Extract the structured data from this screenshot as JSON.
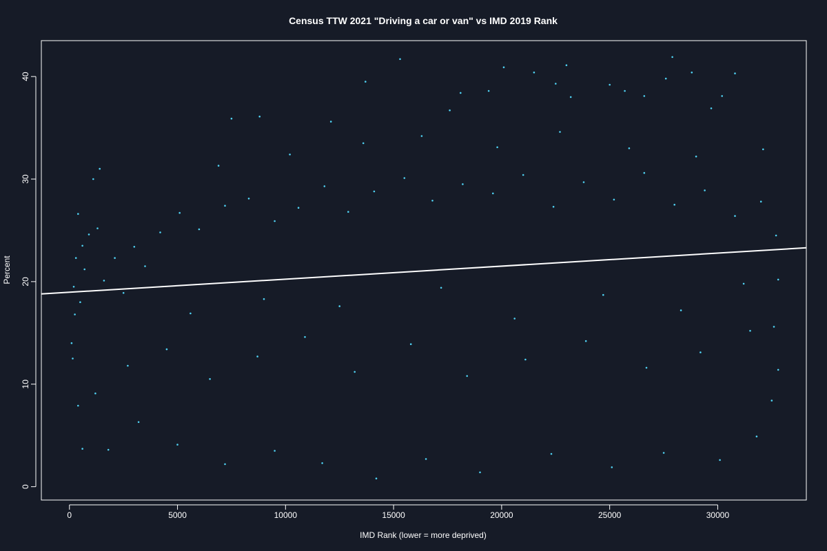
{
  "chart_data": {
    "type": "scatter",
    "title": "Census TTW 2021 \"Driving a car or van\" vs IMD 2019 Rank",
    "xlabel": "IMD Rank (lower = more deprived)",
    "ylabel": "Percent",
    "xlim": [
      -1300,
      34100
    ],
    "ylim": [
      -1.3,
      43.5
    ],
    "x_ticks": [
      0,
      5000,
      10000,
      15000,
      20000,
      25000,
      30000
    ],
    "x_tick_labels": [
      "0",
      "5000",
      "10000",
      "15000",
      "20000",
      "25000",
      "30000"
    ],
    "y_ticks": [
      0,
      10,
      20,
      30,
      40
    ],
    "y_tick_labels": [
      "0",
      "10",
      "20",
      "30",
      "40"
    ],
    "grid": false,
    "legend": "none",
    "point_color": "#4fd1f2",
    "trend_color": "#ffffff",
    "background": "#161b27",
    "trend_line": {
      "x": [
        -1300,
        34100
      ],
      "y": [
        18.8,
        23.3
      ]
    },
    "series": [
      {
        "points": [
          [
            15300,
            41.7
          ],
          [
            27900,
            41.9
          ],
          [
            20100,
            40.9
          ],
          [
            23000,
            41.1
          ],
          [
            30800,
            40.3
          ],
          [
            28800,
            40.4
          ],
          [
            21500,
            40.4
          ],
          [
            13700,
            39.5
          ],
          [
            22500,
            39.3
          ],
          [
            27600,
            39.8
          ],
          [
            25000,
            39.2
          ],
          [
            19400,
            38.6
          ],
          [
            25700,
            38.6
          ],
          [
            18100,
            38.4
          ],
          [
            23200,
            38.0
          ],
          [
            30200,
            38.1
          ],
          [
            8800,
            36.1
          ],
          [
            7500,
            35.9
          ],
          [
            12100,
            35.6
          ],
          [
            17600,
            36.7
          ],
          [
            29700,
            36.9
          ],
          [
            26600,
            38.1
          ],
          [
            1400,
            31.0
          ],
          [
            1100,
            30.0
          ],
          [
            400,
            26.6
          ],
          [
            600,
            23.5
          ],
          [
            300,
            22.3
          ],
          [
            200,
            19.5
          ],
          [
            100,
            14.0
          ],
          [
            150,
            12.5
          ],
          [
            250,
            16.8
          ],
          [
            500,
            18.0
          ],
          [
            700,
            21.2
          ],
          [
            900,
            24.6
          ],
          [
            1300,
            25.2
          ],
          [
            1600,
            20.1
          ],
          [
            2100,
            22.3
          ],
          [
            2500,
            18.9
          ],
          [
            3000,
            23.4
          ],
          [
            3500,
            21.5
          ],
          [
            4200,
            24.8
          ],
          [
            5100,
            26.7
          ],
          [
            6000,
            25.1
          ],
          [
            7200,
            27.4
          ],
          [
            8300,
            28.1
          ],
          [
            9500,
            25.9
          ],
          [
            10600,
            27.2
          ],
          [
            11800,
            29.3
          ],
          [
            12900,
            26.8
          ],
          [
            14100,
            28.8
          ],
          [
            15500,
            30.1
          ],
          [
            16800,
            27.9
          ],
          [
            18200,
            29.5
          ],
          [
            19600,
            28.6
          ],
          [
            21000,
            30.4
          ],
          [
            22400,
            27.3
          ],
          [
            23800,
            29.7
          ],
          [
            25200,
            28.0
          ],
          [
            26600,
            30.6
          ],
          [
            28000,
            27.5
          ],
          [
            29400,
            28.9
          ],
          [
            30800,
            26.4
          ],
          [
            32000,
            27.8
          ],
          [
            32700,
            24.5
          ],
          [
            32800,
            20.2
          ],
          [
            32600,
            15.6
          ],
          [
            32800,
            11.4
          ],
          [
            32500,
            8.4
          ],
          [
            31800,
            4.9
          ],
          [
            30100,
            2.6
          ],
          [
            27500,
            3.3
          ],
          [
            25100,
            1.9
          ],
          [
            22300,
            3.2
          ],
          [
            19000,
            1.4
          ],
          [
            16500,
            2.7
          ],
          [
            14200,
            0.8
          ],
          [
            11700,
            2.3
          ],
          [
            9500,
            3.5
          ],
          [
            7200,
            2.2
          ],
          [
            5000,
            4.1
          ],
          [
            3200,
            6.3
          ],
          [
            1800,
            3.6
          ],
          [
            600,
            3.7
          ],
          [
            400,
            7.9
          ],
          [
            1200,
            9.1
          ],
          [
            2700,
            11.8
          ],
          [
            4500,
            13.4
          ],
          [
            6500,
            10.5
          ],
          [
            8700,
            12.7
          ],
          [
            10900,
            14.6
          ],
          [
            13200,
            11.2
          ],
          [
            15800,
            13.9
          ],
          [
            18400,
            10.8
          ],
          [
            21100,
            12.4
          ],
          [
            23900,
            14.2
          ],
          [
            26700,
            11.6
          ],
          [
            29200,
            13.1
          ],
          [
            31500,
            15.2
          ],
          [
            5600,
            16.9
          ],
          [
            9000,
            18.3
          ],
          [
            12500,
            17.6
          ],
          [
            17200,
            19.4
          ],
          [
            20600,
            16.4
          ],
          [
            24700,
            18.7
          ],
          [
            28300,
            17.2
          ],
          [
            31200,
            19.8
          ],
          [
            6900,
            31.3
          ],
          [
            10200,
            32.4
          ],
          [
            13600,
            33.5
          ],
          [
            16300,
            34.2
          ],
          [
            19800,
            33.1
          ],
          [
            22700,
            34.6
          ],
          [
            25900,
            33.0
          ],
          [
            29000,
            32.2
          ],
          [
            32100,
            32.9
          ]
        ]
      }
    ]
  }
}
